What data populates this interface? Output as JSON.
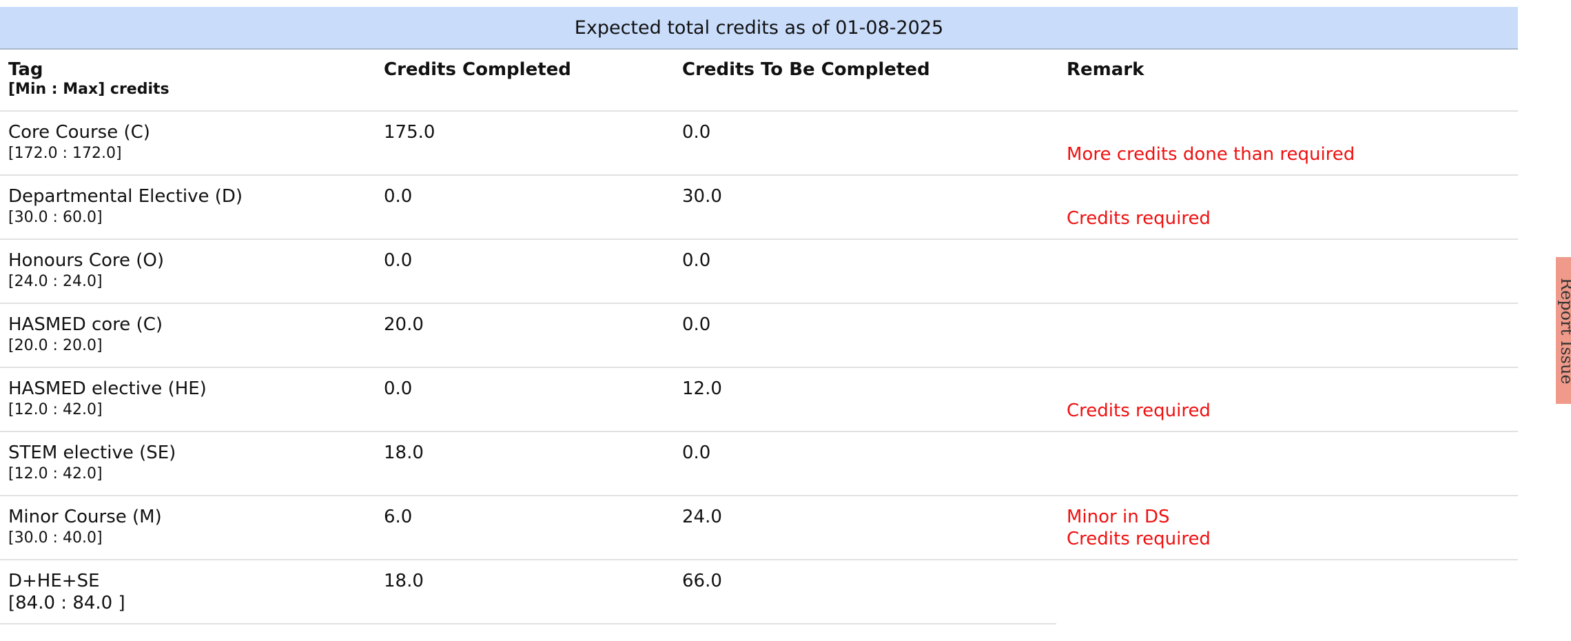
{
  "banner": {
    "title": "Expected total credits as of 01-08-2025"
  },
  "table": {
    "headers": {
      "tag": "Tag",
      "tag_sub": "[Min : Max] credits",
      "completed": "Credits Completed",
      "to_be_completed": "Credits To Be Completed",
      "remark": "Remark"
    },
    "rows": [
      {
        "tag": "Core Course (C)",
        "range": "[172.0 : 172.0]",
        "completed": "175.0",
        "to_be_completed": "0.0",
        "remark_top": "",
        "remark_bottom": "More credits done than required"
      },
      {
        "tag": "Departmental Elective (D)",
        "range": "[30.0 : 60.0]",
        "completed": "0.0",
        "to_be_completed": "30.0",
        "remark_top": "",
        "remark_bottom": "Credits required"
      },
      {
        "tag": "Honours Core (O)",
        "range": "[24.0 : 24.0]",
        "completed": "0.0",
        "to_be_completed": "0.0",
        "remark_top": "",
        "remark_bottom": ""
      },
      {
        "tag": "HASMED core (C)",
        "range": "[20.0 : 20.0]",
        "completed": "20.0",
        "to_be_completed": "0.0",
        "remark_top": "",
        "remark_bottom": ""
      },
      {
        "tag": "HASMED elective (HE)",
        "range": "[12.0 : 42.0]",
        "completed": "0.0",
        "to_be_completed": "12.0",
        "remark_top": "",
        "remark_bottom": "Credits required"
      },
      {
        "tag": "STEM elective (SE)",
        "range": "[12.0 : 42.0]",
        "completed": "18.0",
        "to_be_completed": "0.0",
        "remark_top": "",
        "remark_bottom": ""
      },
      {
        "tag": "Minor Course (M)",
        "range": "[30.0 : 40.0]",
        "completed": "6.0",
        "to_be_completed": "24.0",
        "remark_top": "Minor in DS",
        "remark_bottom": "Credits required"
      },
      {
        "tag": "D+HE+SE",
        "range": "[84.0 : 84.0 ]",
        "completed": "18.0",
        "to_be_completed": "66.0",
        "remark_top": "",
        "remark_bottom": ""
      }
    ]
  },
  "side_tab": {
    "label": "Report Issue"
  },
  "colors": {
    "banner_bg": "#c9ddfb",
    "remark_red": "#ee1111",
    "side_tab_bg": "#ef9a8a"
  }
}
